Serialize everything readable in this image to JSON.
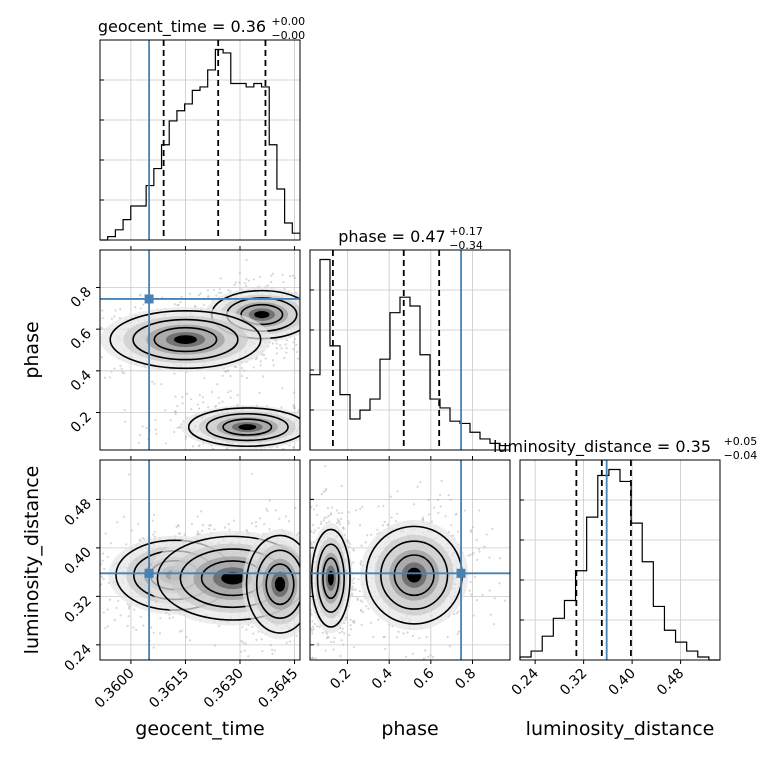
{
  "chart_data": {
    "type": "corner",
    "parameters": [
      "geocent_time",
      "phase",
      "luminosity_distance"
    ],
    "truth": {
      "geocent_time": 0.3605,
      "phase": 0.745,
      "luminosity_distance": 0.358
    },
    "colors": {
      "truth": "#4682b4",
      "hist": "#000000",
      "grid": "#c8c8c8",
      "points": "#b4b4b4"
    },
    "titles": [
      {
        "param": "geocent_time",
        "label": "geocent_time = 0.36",
        "sup": "+0.00",
        "sub": "−0.00"
      },
      {
        "param": "phase",
        "label": "phase = 0.47",
        "sup": "+0.17",
        "sub": "−0.34"
      },
      {
        "param": "luminosity_distance",
        "label": "luminosity_distance = 0.35",
        "sup": "+0.05",
        "sub": "−0.04"
      }
    ],
    "axes": {
      "geocent_time": {
        "xlabel": "geocent_time",
        "ticks": [
          "0.3600",
          "0.3615",
          "0.3630",
          "0.3645"
        ],
        "tick_values": [
          0.36,
          0.3615,
          0.363,
          0.3645
        ],
        "range": [
          0.35915,
          0.36465
        ]
      },
      "phase": {
        "xlabel": "phase",
        "ylabel": "phase",
        "ticks": [
          "0.2",
          "0.4",
          "0.6",
          "0.8"
        ],
        "tick_values": [
          0.2,
          0.4,
          0.6,
          0.8
        ],
        "range": [
          0.02,
          0.98
        ]
      },
      "luminosity_distance": {
        "xlabel": "luminosity_distance",
        "ylabel": "luminosity_distance",
        "ticks": [
          "0.24",
          "0.32",
          "0.40",
          "0.48"
        ],
        "tick_values": [
          0.24,
          0.32,
          0.4,
          0.48
        ],
        "range": [
          0.215,
          0.545
        ]
      }
    },
    "histograms": {
      "geocent_time": {
        "edges": [
          0.35915,
          0.36465
        ],
        "counts": [
          0,
          1,
          3,
          6,
          10,
          10,
          16,
          21,
          28,
          35,
          38,
          40,
          44,
          45,
          50,
          56,
          55,
          46,
          46,
          45,
          46,
          45,
          28,
          15,
          5,
          2
        ],
        "quantiles": [
          0.3609,
          0.3624,
          0.3637
        ]
      },
      "phase": {
        "edges": [
          0.02,
          0.98
        ],
        "counts": [
          34,
          86,
          47,
          25,
          14,
          18,
          23,
          41,
          62,
          69,
          65,
          43,
          23,
          19,
          13,
          12,
          8,
          5,
          3,
          2
        ],
        "quantiles": [
          0.13,
          0.47,
          0.64
        ]
      },
      "luminosity_distance": {
        "edges": [
          0.215,
          0.545
        ],
        "counts": [
          1,
          3,
          8,
          14,
          20,
          30,
          48,
          62,
          64,
          60,
          46,
          33,
          18,
          10,
          6,
          3,
          1,
          0
        ],
        "quantiles": [
          0.308,
          0.35,
          0.398
        ]
      }
    },
    "modes_2d": {
      "phase_vs_geocent_time": [
        {
          "x": 0.3636,
          "y": 0.67,
          "sx": 0.0006,
          "sy": 0.05,
          "w": 1.0
        },
        {
          "x": 0.3615,
          "y": 0.55,
          "sx": 0.0009,
          "sy": 0.06,
          "w": 0.85
        },
        {
          "x": 0.3632,
          "y": 0.13,
          "sx": 0.0007,
          "sy": 0.04,
          "w": 0.95
        }
      ],
      "luminosity_distance_vs_geocent_time": [
        {
          "x": 0.3612,
          "y": 0.355,
          "sx": 0.0007,
          "sy": 0.025,
          "w": 0.9
        },
        {
          "x": 0.3628,
          "y": 0.35,
          "sx": 0.0009,
          "sy": 0.03,
          "w": 0.8
        },
        {
          "x": 0.3641,
          "y": 0.34,
          "sx": 0.0004,
          "sy": 0.035,
          "w": 0.5
        }
      ],
      "luminosity_distance_vs_phase": [
        {
          "x": 0.12,
          "y": 0.35,
          "sx": 0.04,
          "sy": 0.035,
          "w": 0.9
        },
        {
          "x": 0.52,
          "y": 0.355,
          "sx": 0.1,
          "sy": 0.035,
          "w": 1.0
        }
      ]
    }
  }
}
